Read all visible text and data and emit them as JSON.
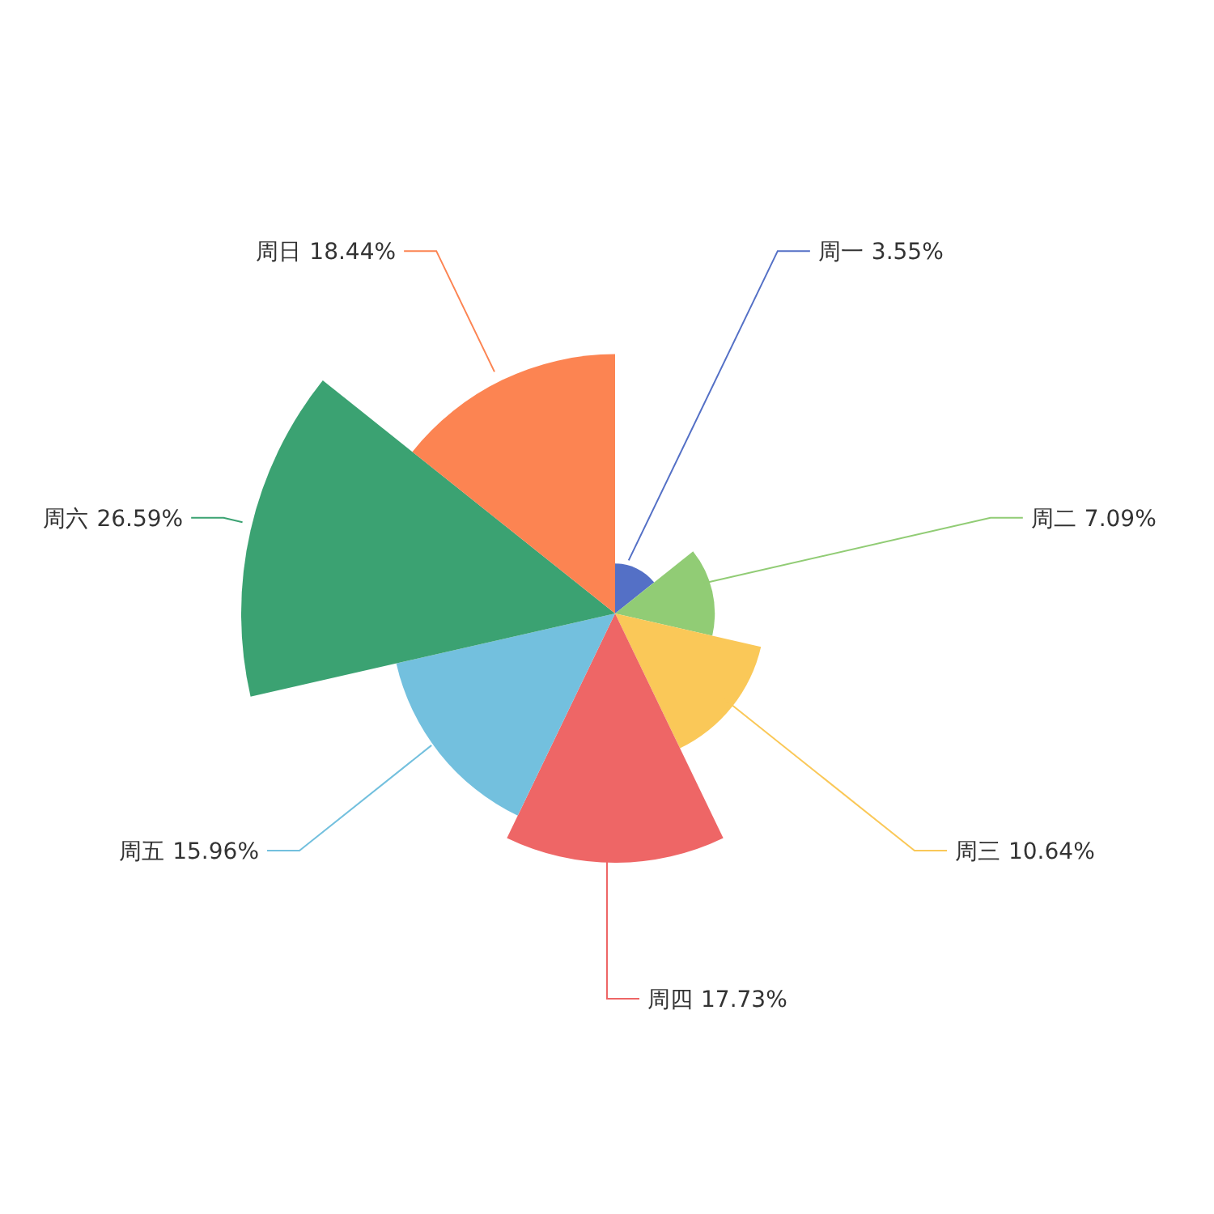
{
  "chart_data": {
    "type": "other",
    "categories": [
      "周一",
      "周二",
      "周三",
      "周四",
      "周五",
      "周六",
      "周日"
    ],
    "values": [
      3.55,
      7.09,
      10.64,
      17.73,
      15.96,
      26.59,
      18.44
    ],
    "value_labels": [
      "3.55%",
      "7.09%",
      "10.64%",
      "17.73%",
      "15.96%",
      "26.59%",
      "18.44%"
    ],
    "colors": [
      "#5470c6",
      "#91cc75",
      "#fac858",
      "#ee6666",
      "#73c0de",
      "#3ba272",
      "#fc8452"
    ]
  }
}
